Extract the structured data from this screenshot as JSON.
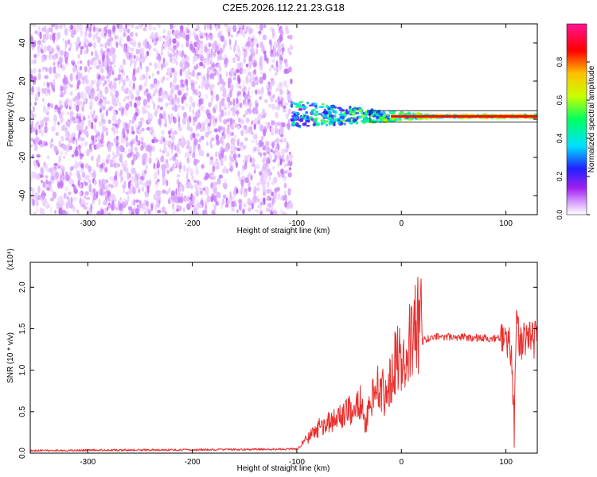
{
  "figure": {
    "title": "C2E5.2026.112.21.23.G18"
  },
  "colors": {
    "snr_line": "#e8312f",
    "spectrogram_noise": "#7a1fe0",
    "axis": "#000000"
  },
  "chart_data": [
    {
      "id": "spectrogram",
      "type": "heatmap",
      "xlabel": "Height of straight line (km)",
      "ylabel": "Frequency (Hz)",
      "xlim": [
        -355,
        130
      ],
      "ylim": [
        -50,
        50
      ],
      "xticks": [
        -300,
        -200,
        -100,
        0,
        100
      ],
      "yticks": [
        -40,
        -20,
        0,
        20,
        40
      ],
      "noise_region_x": [
        -355,
        -105
      ],
      "signal_region_x": [
        -105,
        130
      ],
      "signal_center_freq_hz": 1.5,
      "colorbar": {
        "label": "Normalized spectral amplitude",
        "range": [
          0.0,
          1.0
        ],
        "ticks": [
          0.0,
          0.2,
          0.4,
          0.6,
          0.8
        ],
        "tick_labels": [
          "0.0",
          "0.2",
          "0.4",
          "0.6",
          "0.8"
        ],
        "colormap": [
          "#ffffff",
          "#d9a6ff",
          "#a020f0",
          "#2020ff",
          "#00e0ff",
          "#00ff60",
          "#c8ff00",
          "#ffc000",
          "#ff0000",
          "#ff1493"
        ]
      }
    },
    {
      "id": "snr",
      "type": "line",
      "xlabel": "Height of straight line (km)",
      "ylabel": "SNR (10 * v/v)",
      "multiplier_label": "(x10⁴)",
      "xlim": [
        -355,
        130
      ],
      "ylim": [
        0,
        23000
      ],
      "xticks": [
        -300,
        -200,
        -100,
        0,
        100
      ],
      "yticks": [
        0,
        5000,
        10000,
        15000,
        20000
      ],
      "ytick_labels": [
        "0.0",
        "0.5",
        "1.0",
        "1.5",
        "2.0"
      ],
      "series": [
        {
          "name": "SNR",
          "x": [
            -355,
            -300,
            -200,
            -100,
            -90,
            -80,
            -70,
            -60,
            -50,
            -40,
            -35,
            -30,
            -25,
            -20,
            -15,
            -10,
            -5,
            0,
            5,
            10,
            15,
            20,
            25,
            30,
            40,
            50,
            60,
            70,
            80,
            90,
            100,
            105,
            108,
            110,
            112,
            115,
            120,
            130
          ],
          "values": [
            300,
            350,
            400,
            500,
            1500,
            2500,
            3000,
            3500,
            4500,
            5500,
            3000,
            5000,
            6000,
            7000,
            5500,
            8000,
            9500,
            10000,
            11000,
            12000,
            13000,
            13500,
            13800,
            14000,
            14000,
            14000,
            14000,
            13900,
            13900,
            13800,
            13800,
            12000,
            2000,
            18000,
            14000,
            13500,
            13500,
            13400
          ]
        }
      ]
    }
  ]
}
